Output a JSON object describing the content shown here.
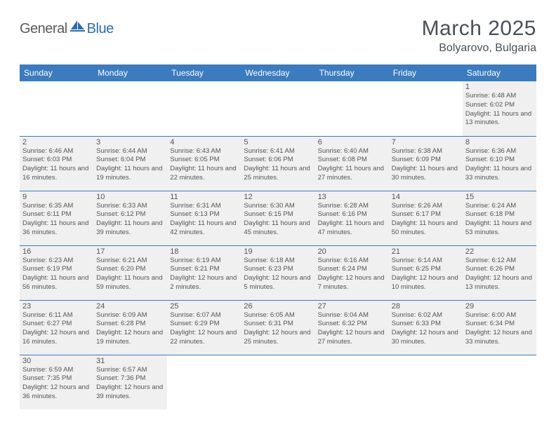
{
  "logo": {
    "text1": "General",
    "text2": "Blue",
    "color1": "#5a5a5a",
    "color2": "#2a6db0"
  },
  "title": "March 2025",
  "location": "Bolyarovo, Bulgaria",
  "headerBg": "#3b7bbf",
  "headerFg": "#ffffff",
  "cellBg": "#f0f0f0",
  "borderColor": "#3b7bbf",
  "textColor": "#555555",
  "dayHeaders": [
    "Sunday",
    "Monday",
    "Tuesday",
    "Wednesday",
    "Thursday",
    "Friday",
    "Saturday"
  ],
  "weeks": [
    [
      null,
      null,
      null,
      null,
      null,
      null,
      {
        "n": "1",
        "sr": "6:48 AM",
        "ss": "6:02 PM",
        "dl": "11 hours and 13 minutes."
      }
    ],
    [
      {
        "n": "2",
        "sr": "6:46 AM",
        "ss": "6:03 PM",
        "dl": "11 hours and 16 minutes."
      },
      {
        "n": "3",
        "sr": "6:44 AM",
        "ss": "6:04 PM",
        "dl": "11 hours and 19 minutes."
      },
      {
        "n": "4",
        "sr": "6:43 AM",
        "ss": "6:05 PM",
        "dl": "11 hours and 22 minutes."
      },
      {
        "n": "5",
        "sr": "6:41 AM",
        "ss": "6:06 PM",
        "dl": "11 hours and 25 minutes."
      },
      {
        "n": "6",
        "sr": "6:40 AM",
        "ss": "6:08 PM",
        "dl": "11 hours and 27 minutes."
      },
      {
        "n": "7",
        "sr": "6:38 AM",
        "ss": "6:09 PM",
        "dl": "11 hours and 30 minutes."
      },
      {
        "n": "8",
        "sr": "6:36 AM",
        "ss": "6:10 PM",
        "dl": "11 hours and 33 minutes."
      }
    ],
    [
      {
        "n": "9",
        "sr": "6:35 AM",
        "ss": "6:11 PM",
        "dl": "11 hours and 36 minutes."
      },
      {
        "n": "10",
        "sr": "6:33 AM",
        "ss": "6:12 PM",
        "dl": "11 hours and 39 minutes."
      },
      {
        "n": "11",
        "sr": "6:31 AM",
        "ss": "6:13 PM",
        "dl": "11 hours and 42 minutes."
      },
      {
        "n": "12",
        "sr": "6:30 AM",
        "ss": "6:15 PM",
        "dl": "11 hours and 45 minutes."
      },
      {
        "n": "13",
        "sr": "6:28 AM",
        "ss": "6:16 PM",
        "dl": "11 hours and 47 minutes."
      },
      {
        "n": "14",
        "sr": "6:26 AM",
        "ss": "6:17 PM",
        "dl": "11 hours and 50 minutes."
      },
      {
        "n": "15",
        "sr": "6:24 AM",
        "ss": "6:18 PM",
        "dl": "11 hours and 53 minutes."
      }
    ],
    [
      {
        "n": "16",
        "sr": "6:23 AM",
        "ss": "6:19 PM",
        "dl": "11 hours and 56 minutes."
      },
      {
        "n": "17",
        "sr": "6:21 AM",
        "ss": "6:20 PM",
        "dl": "11 hours and 59 minutes."
      },
      {
        "n": "18",
        "sr": "6:19 AM",
        "ss": "6:21 PM",
        "dl": "12 hours and 2 minutes."
      },
      {
        "n": "19",
        "sr": "6:18 AM",
        "ss": "6:23 PM",
        "dl": "12 hours and 5 minutes."
      },
      {
        "n": "20",
        "sr": "6:16 AM",
        "ss": "6:24 PM",
        "dl": "12 hours and 7 minutes."
      },
      {
        "n": "21",
        "sr": "6:14 AM",
        "ss": "6:25 PM",
        "dl": "12 hours and 10 minutes."
      },
      {
        "n": "22",
        "sr": "6:12 AM",
        "ss": "6:26 PM",
        "dl": "12 hours and 13 minutes."
      }
    ],
    [
      {
        "n": "23",
        "sr": "6:11 AM",
        "ss": "6:27 PM",
        "dl": "12 hours and 16 minutes."
      },
      {
        "n": "24",
        "sr": "6:09 AM",
        "ss": "6:28 PM",
        "dl": "12 hours and 19 minutes."
      },
      {
        "n": "25",
        "sr": "6:07 AM",
        "ss": "6:29 PM",
        "dl": "12 hours and 22 minutes."
      },
      {
        "n": "26",
        "sr": "6:05 AM",
        "ss": "6:31 PM",
        "dl": "12 hours and 25 minutes."
      },
      {
        "n": "27",
        "sr": "6:04 AM",
        "ss": "6:32 PM",
        "dl": "12 hours and 27 minutes."
      },
      {
        "n": "28",
        "sr": "6:02 AM",
        "ss": "6:33 PM",
        "dl": "12 hours and 30 minutes."
      },
      {
        "n": "29",
        "sr": "6:00 AM",
        "ss": "6:34 PM",
        "dl": "12 hours and 33 minutes."
      }
    ],
    [
      {
        "n": "30",
        "sr": "6:59 AM",
        "ss": "7:35 PM",
        "dl": "12 hours and 36 minutes."
      },
      {
        "n": "31",
        "sr": "6:57 AM",
        "ss": "7:36 PM",
        "dl": "12 hours and 39 minutes."
      },
      null,
      null,
      null,
      null,
      null
    ]
  ],
  "labels": {
    "sunrise": "Sunrise:",
    "sunset": "Sunset:",
    "daylight": "Daylight:"
  }
}
